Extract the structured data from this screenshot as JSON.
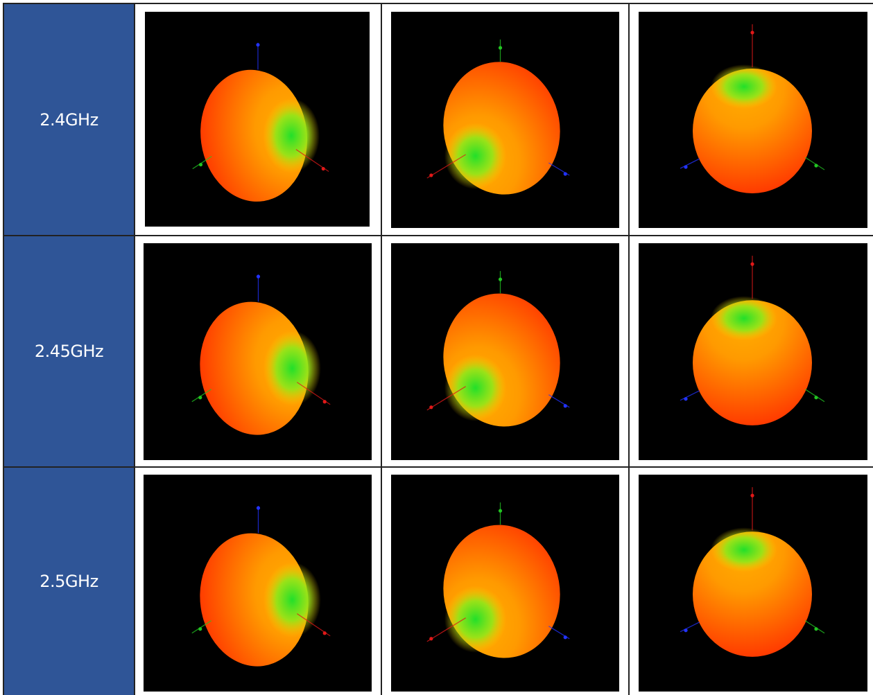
{
  "rows": [
    {
      "label": "2.4GHz"
    },
    {
      "label": "2.45GHz"
    },
    {
      "label": "2.5GHz"
    }
  ],
  "colors": {
    "header_fill": "#2f5597",
    "header_text": "#ffffff",
    "plot_background": "#000000",
    "pattern_high": "#ff2a00",
    "pattern_mid": "#ffb000",
    "pattern_low": "#22e02a",
    "axis_x": "#e01818",
    "axis_y": "#22c422",
    "axis_z": "#2233ff"
  },
  "columns": [
    {
      "view": "oblique-side-right",
      "description_icon": "radiation-pattern-3d"
    },
    {
      "view": "oblique-side-left",
      "description_icon": "radiation-pattern-3d"
    },
    {
      "view": "top-down",
      "description_icon": "radiation-pattern-3d"
    }
  ]
}
